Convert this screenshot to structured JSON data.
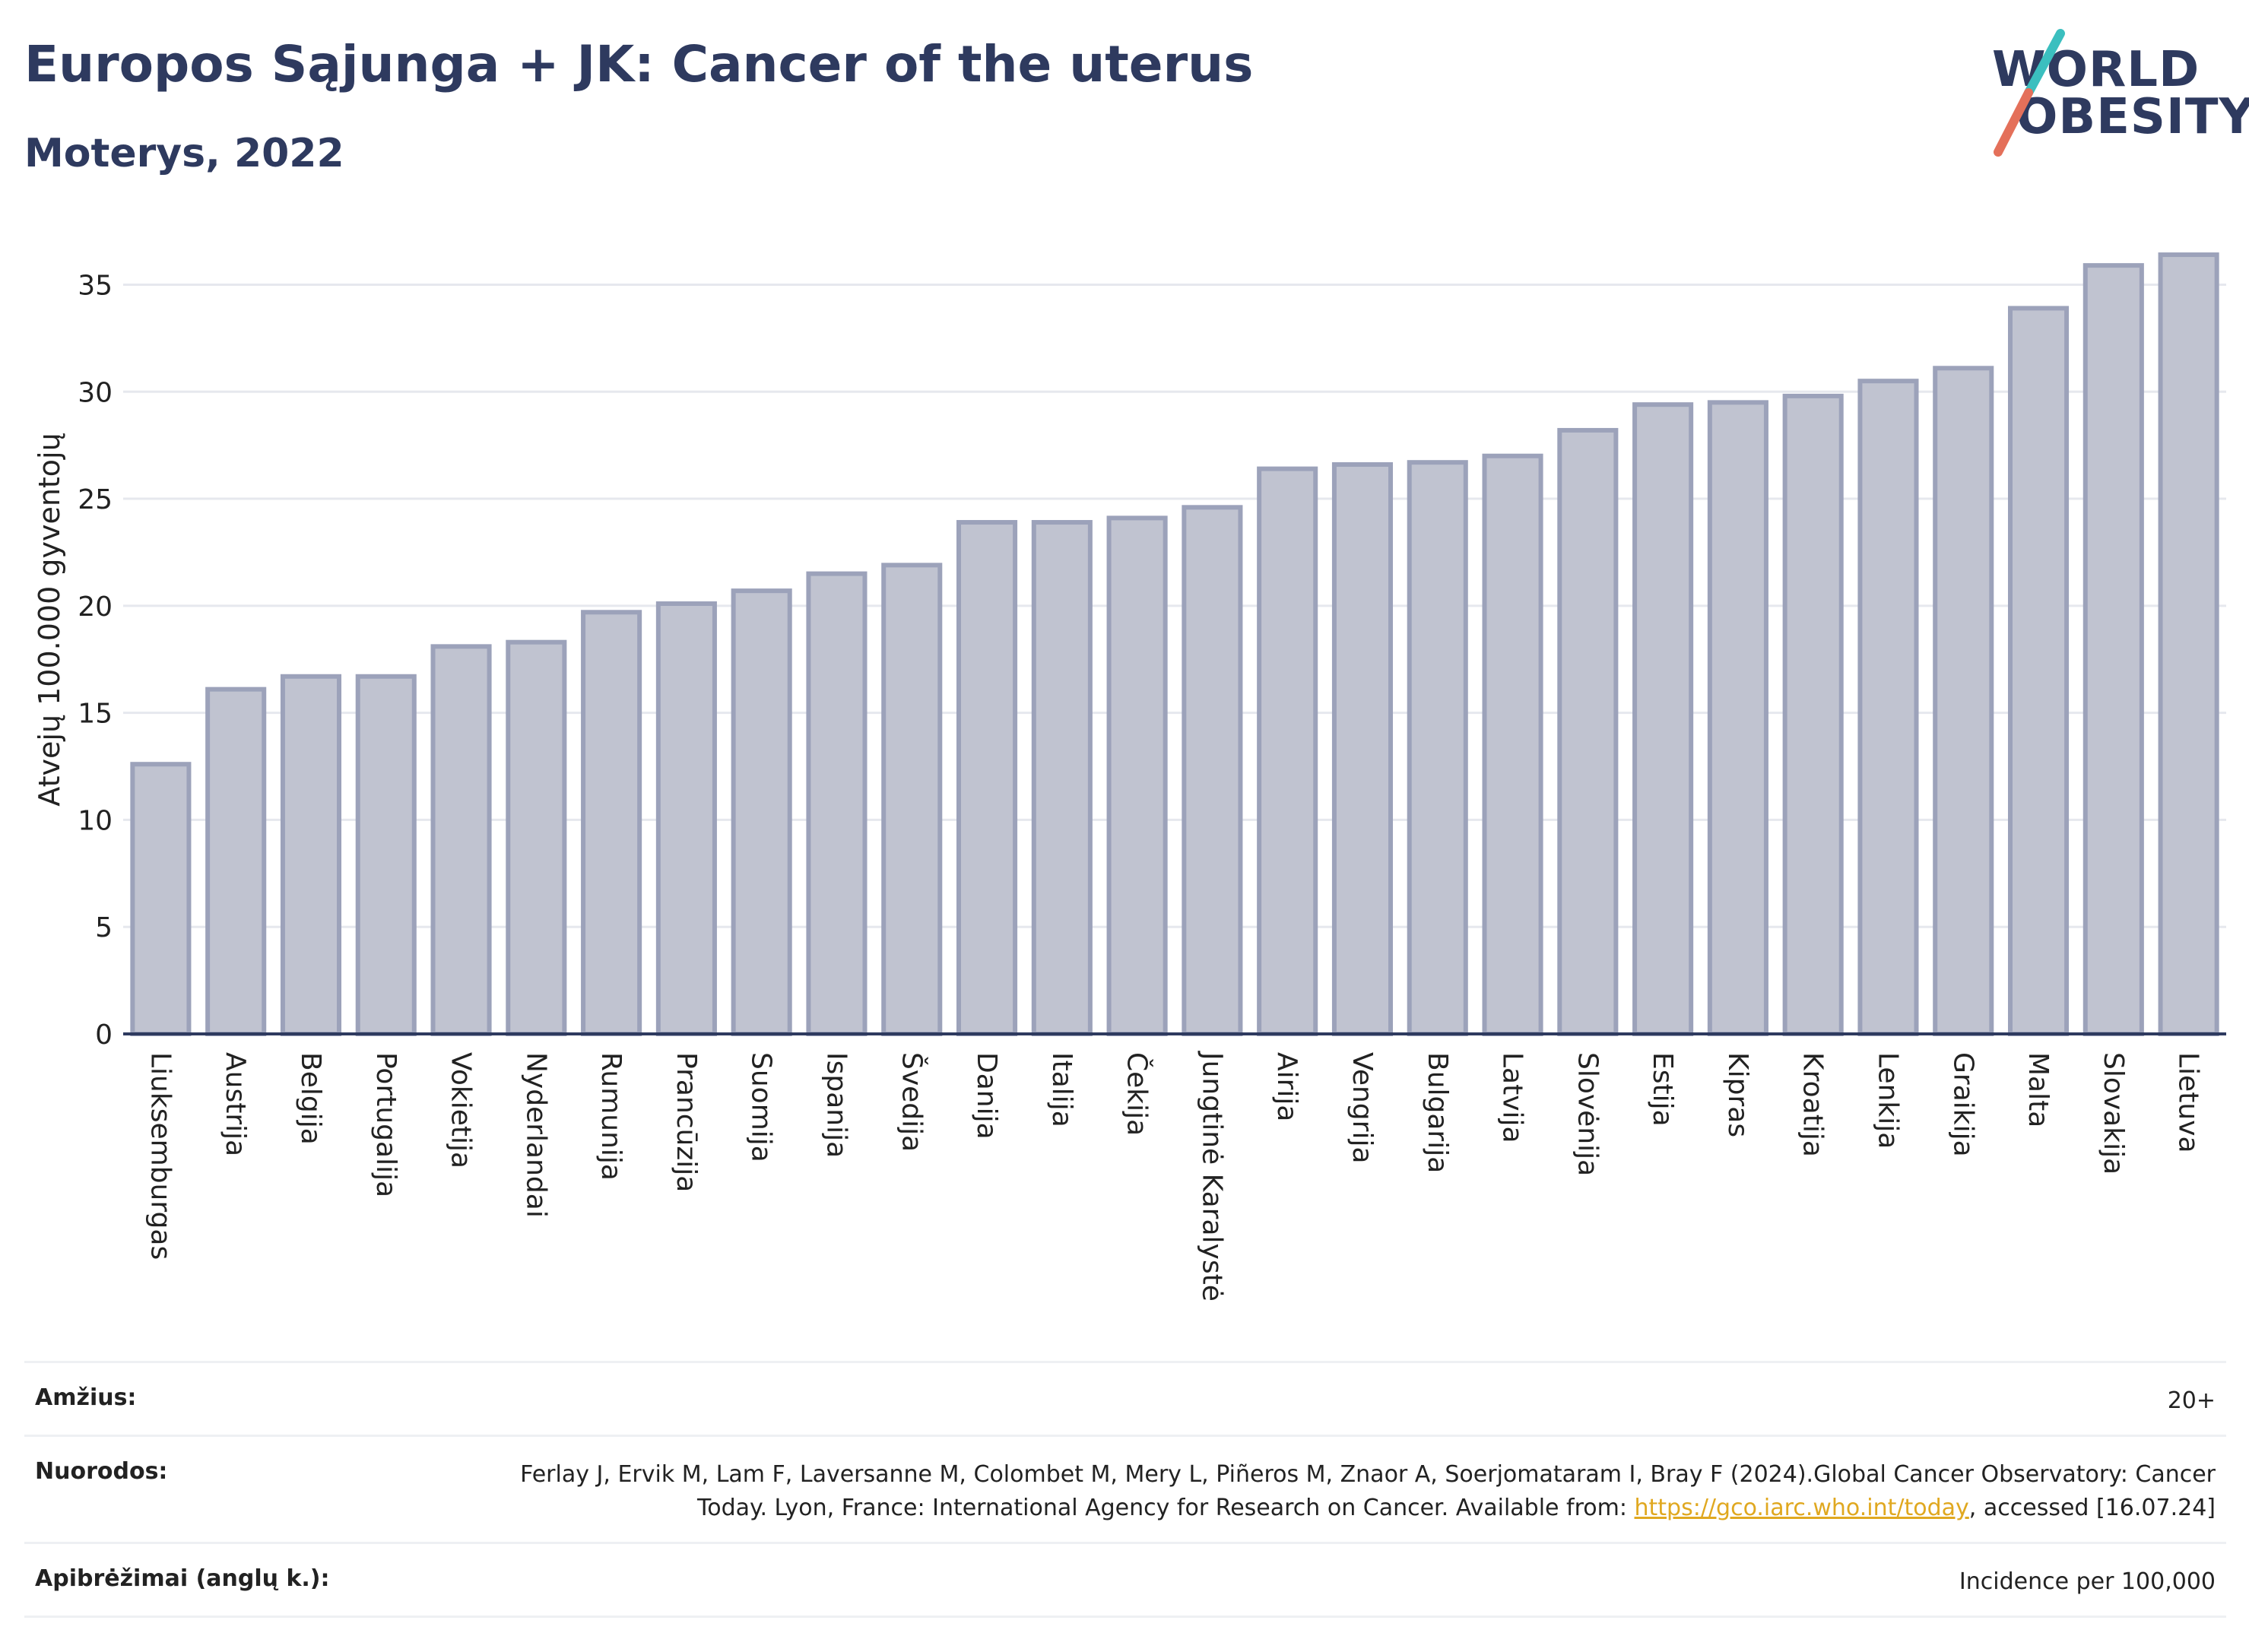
{
  "header": {
    "title": "Europos Sąjunga + JK: Cancer of the uterus",
    "subtitle": "Moterys, 2022"
  },
  "logo": {
    "line1": "WORLD",
    "line2": "OBESITY"
  },
  "chart_data": {
    "type": "bar",
    "categories": [
      "Liuksemburgas",
      "Austrija",
      "Belgija",
      "Portugalija",
      "Vokietija",
      "Nyderlandai",
      "Rumunija",
      "Prancūzija",
      "Suomija",
      "Ispanija",
      "Švedija",
      "Danija",
      "Italija",
      "Čekija",
      "Jungtinė Karalystė",
      "Airija",
      "Vengrija",
      "Bulgarija",
      "Latvija",
      "Slovėnija",
      "Estija",
      "Kipras",
      "Kroatija",
      "Lenkija",
      "Graikija",
      "Malta",
      "Slovakija",
      "Lietuva"
    ],
    "values": [
      12.6,
      16.1,
      16.7,
      16.7,
      18.1,
      18.3,
      19.7,
      20.1,
      20.7,
      21.5,
      21.9,
      23.9,
      23.9,
      24.1,
      24.6,
      26.4,
      26.6,
      26.7,
      27.0,
      28.2,
      29.4,
      29.5,
      29.8,
      30.5,
      31.1,
      33.9,
      35.9,
      36.4
    ],
    "ylabel": "Atvejų 100.000 gyventojų",
    "xlabel": "",
    "ylim": [
      0,
      38
    ],
    "yticks": [
      0,
      5,
      10,
      15,
      20,
      25,
      30,
      35
    ],
    "grid": true,
    "colors": {
      "bar_fill": "#c0c3d0",
      "bar_stroke": "#9ca2ba",
      "axis": "#2e3a5f",
      "grid": "#e6e8ee"
    }
  },
  "info": {
    "rows": [
      {
        "key": "Amžius:",
        "value": "20+"
      },
      {
        "key": "Nuorodos:",
        "pre": "Ferlay J, Ervik M, Lam F, Laversanne M, Colombet M, Mery L, Piñeros M, Znaor A, Soerjomataram I, Bray F (2024).Global Cancer Observatory: Cancer Today. Lyon, France: International Agency for Research on Cancer. Available from: ",
        "link": "https://gco.iarc.who.int/today",
        "post": ", accessed [16.07.24]"
      },
      {
        "key": "Apibrėžimai (anglų k.):",
        "value": "Incidence per 100,000"
      }
    ]
  }
}
